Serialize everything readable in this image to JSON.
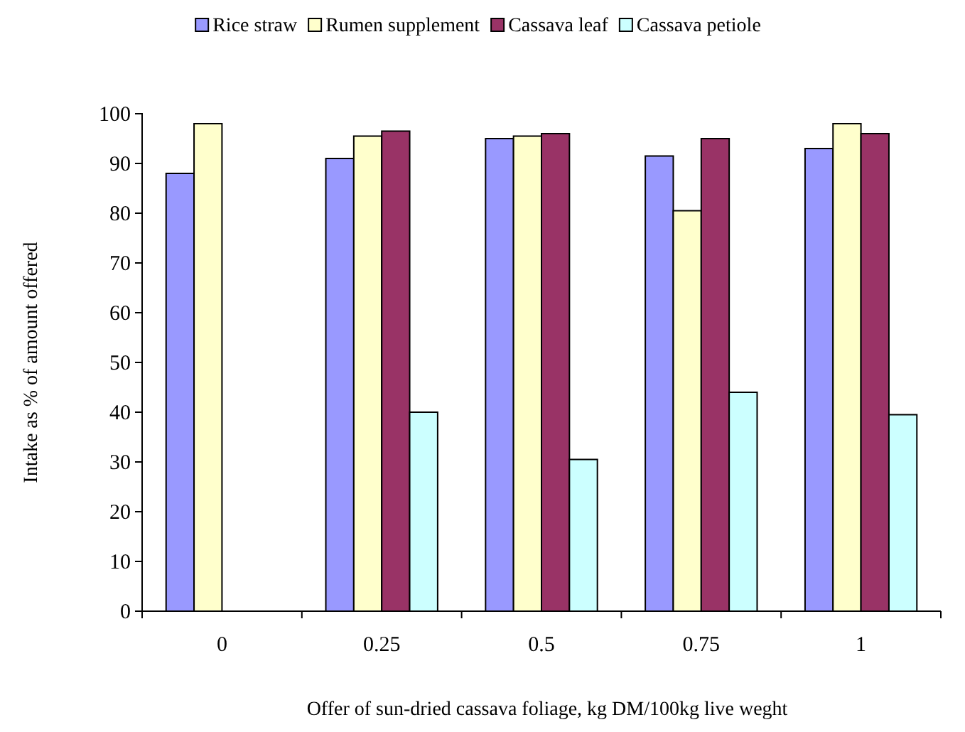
{
  "chart_data": {
    "type": "bar",
    "xlabel": "Offer of sun-dried cassava foliage, kg DM/100kg live weght",
    "ylabel": "Intake as % of amount offered",
    "categories": [
      "0",
      "0.25",
      "0.5",
      "0.75",
      "1"
    ],
    "series": [
      {
        "name": "Rice straw",
        "color": "#9999ff",
        "values": [
          88,
          91,
          95,
          91.5,
          93
        ]
      },
      {
        "name": "Rumen supplement",
        "color": "#ffffcc",
        "values": [
          98,
          95.5,
          95.5,
          80.5,
          98
        ]
      },
      {
        "name": "Cassava leaf",
        "color": "#993366",
        "values": [
          null,
          96.5,
          96,
          95,
          96
        ]
      },
      {
        "name": "Cassava petiole",
        "color": "#ccffff",
        "values": [
          null,
          40,
          30.5,
          44,
          39.5
        ]
      }
    ],
    "ylim": [
      0,
      100
    ],
    "yticks": [
      0,
      10,
      20,
      30,
      40,
      50,
      60,
      70,
      80,
      90,
      100
    ],
    "legend": "top",
    "grid": false
  }
}
